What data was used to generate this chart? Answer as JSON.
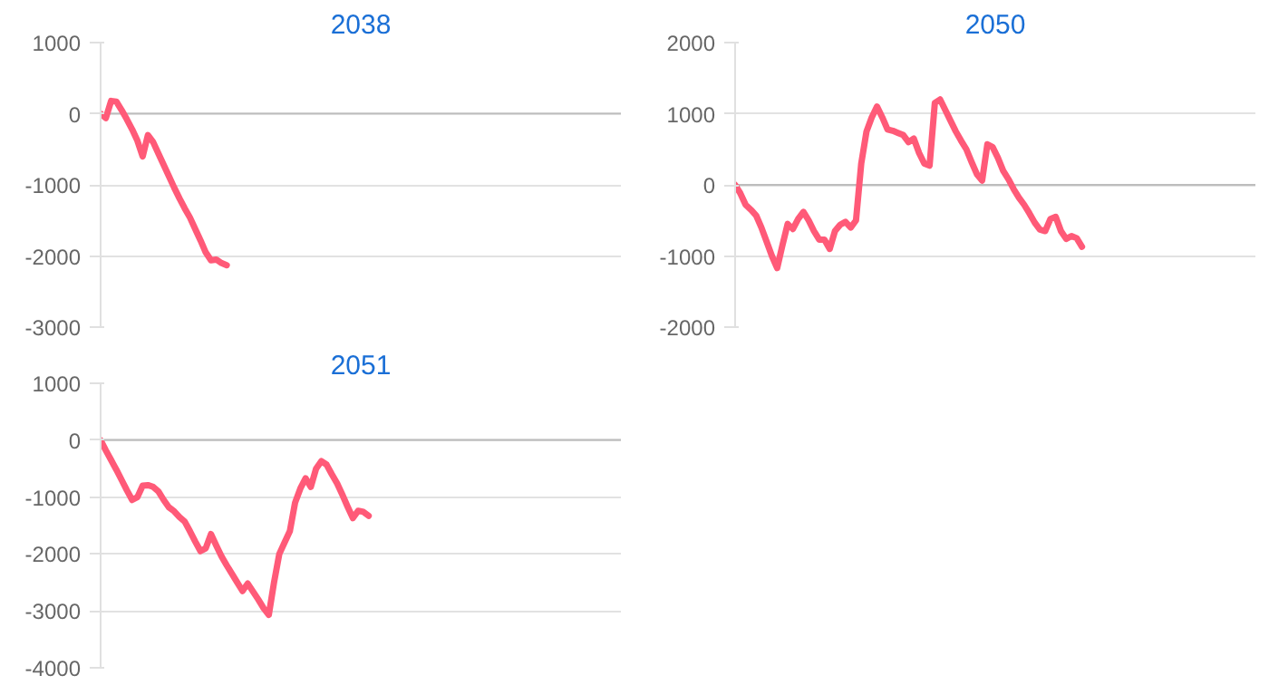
{
  "chart_data": [
    {
      "type": "line",
      "title": "2038",
      "categories": [
        null,
        null,
        null,
        null,
        null,
        null,
        null,
        null,
        null,
        null,
        null,
        null,
        null,
        null,
        null,
        null,
        null,
        null,
        null,
        null,
        null,
        null,
        null,
        null,
        null,
        null,
        null,
        null,
        null,
        null,
        null,
        null,
        null,
        null,
        null,
        null,
        null,
        null,
        null,
        null,
        null,
        null,
        null,
        null,
        null,
        null,
        null,
        null,
        null,
        null,
        null,
        null,
        null,
        null,
        null,
        null,
        null,
        null,
        null,
        null,
        null,
        null,
        null,
        null,
        null,
        null,
        null,
        null,
        null,
        null,
        null,
        null,
        null,
        null,
        null,
        null,
        null,
        null,
        null,
        null,
        null,
        null,
        null,
        null,
        null,
        null,
        null,
        null,
        null,
        null,
        null,
        null,
        null,
        null,
        null,
        null,
        null,
        null,
        null,
        null
      ],
      "series": [
        {
          "color": "#ff5a78",
          "values": [
            0,
            -60,
            180,
            170,
            50,
            -80,
            -220,
            -380,
            -600,
            -300,
            -400,
            -560,
            -720,
            -880,
            -1040,
            -1190,
            -1330,
            -1460,
            -1620,
            -1780,
            -1950,
            -2060,
            -2050,
            -2100,
            -2130,
            null,
            null,
            null,
            null,
            null,
            null,
            null,
            null,
            null,
            null,
            null,
            null,
            null,
            null,
            null,
            null,
            null,
            null,
            null,
            null,
            null,
            null,
            null,
            null,
            null,
            null,
            null,
            null,
            null,
            null,
            null,
            null,
            null,
            null,
            null,
            null,
            null,
            null,
            null,
            null,
            null,
            null,
            null,
            null,
            null,
            null,
            null,
            null,
            null,
            null,
            null,
            null,
            null,
            null,
            null,
            null,
            null,
            null,
            null,
            null,
            null,
            null,
            null,
            null,
            null,
            null,
            null,
            null,
            null,
            null,
            null,
            null,
            null,
            null,
            null
          ]
        }
      ],
      "ylim": [
        -3000,
        1000
      ],
      "yticks": [
        -3000,
        -2000,
        -1000,
        0,
        1000
      ],
      "grid": "y",
      "tick_labels": "y"
    },
    {
      "type": "line",
      "title": "2050",
      "categories": [
        null,
        null,
        null,
        null,
        null,
        null,
        null,
        null,
        null,
        null,
        null,
        null,
        null,
        null,
        null,
        null,
        null,
        null,
        null,
        null,
        null,
        null,
        null,
        null,
        null,
        null,
        null,
        null,
        null,
        null,
        null,
        null,
        null,
        null,
        null,
        null,
        null,
        null,
        null,
        null,
        null,
        null,
        null,
        null,
        null,
        null,
        null,
        null,
        null,
        null,
        null,
        null,
        null,
        null,
        null,
        null,
        null,
        null,
        null,
        null,
        null,
        null,
        null,
        null,
        null,
        null,
        null,
        null,
        null,
        null,
        null,
        null,
        null,
        null,
        null,
        null,
        null,
        null,
        null,
        null,
        null,
        null,
        null,
        null,
        null,
        null,
        null,
        null,
        null,
        null,
        null,
        null,
        null,
        null,
        null,
        null,
        null,
        null,
        null,
        null
      ],
      "series": [
        {
          "color": "#ff5a78",
          "values": [
            0,
            -120,
            -280,
            -350,
            -430,
            -600,
            -800,
            -1000,
            -1170,
            -850,
            -550,
            -620,
            -480,
            -380,
            -500,
            -650,
            -770,
            -770,
            -900,
            -650,
            -560,
            -520,
            -600,
            -500,
            300,
            750,
            950,
            1100,
            950,
            780,
            760,
            730,
            700,
            600,
            650,
            450,
            300,
            270,
            1150,
            1200,
            1050,
            900,
            750,
            620,
            500,
            320,
            150,
            60,
            570,
            530,
            380,
            200,
            80,
            -60,
            -180,
            -280,
            -400,
            -530,
            -630,
            -650,
            -480,
            -450,
            -650,
            -760,
            -720,
            -750,
            -870,
            null,
            null,
            null,
            null,
            null,
            null,
            null,
            null,
            null,
            null,
            null,
            null,
            null,
            null,
            null,
            null,
            null,
            null,
            null,
            null,
            null,
            null,
            null,
            null,
            null,
            null,
            null,
            null,
            null,
            null,
            null,
            null,
            null
          ]
        }
      ],
      "ylim": [
        -2000,
        2000
      ],
      "yticks": [
        -2000,
        -1000,
        0,
        1000,
        2000
      ],
      "grid": "y",
      "tick_labels": "y"
    },
    {
      "type": "line",
      "title": "2051",
      "categories": [
        null,
        null,
        null,
        null,
        null,
        null,
        null,
        null,
        null,
        null,
        null,
        null,
        null,
        null,
        null,
        null,
        null,
        null,
        null,
        null,
        null,
        null,
        null,
        null,
        null,
        null,
        null,
        null,
        null,
        null,
        null,
        null,
        null,
        null,
        null,
        null,
        null,
        null,
        null,
        null,
        null,
        null,
        null,
        null,
        null,
        null,
        null,
        null,
        null,
        null,
        null,
        null,
        null,
        null,
        null,
        null,
        null,
        null,
        null,
        null,
        null,
        null,
        null,
        null,
        null,
        null,
        null,
        null,
        null,
        null,
        null,
        null,
        null,
        null,
        null,
        null,
        null,
        null,
        null,
        null,
        null,
        null,
        null,
        null,
        null,
        null,
        null,
        null,
        null,
        null,
        null,
        null,
        null,
        null,
        null,
        null,
        null,
        null,
        null,
        null
      ],
      "series": [
        {
          "color": "#ff5a78",
          "values": [
            0,
            -180,
            -350,
            -520,
            -700,
            -880,
            -1050,
            -1000,
            -800,
            -790,
            -820,
            -900,
            -1050,
            -1180,
            -1250,
            -1350,
            -1430,
            -1600,
            -1780,
            -1950,
            -1900,
            -1650,
            -1850,
            -2040,
            -2200,
            -2350,
            -2500,
            -2650,
            -2520,
            -2660,
            -2800,
            -2950,
            -3070,
            -2500,
            -2000,
            -1800,
            -1600,
            -1100,
            -850,
            -670,
            -820,
            -500,
            -370,
            -430,
            -600,
            -760,
            -960,
            -1170,
            -1370,
            -1240,
            -1260,
            -1330,
            null,
            null,
            null,
            null,
            null,
            null,
            null,
            null,
            null,
            null,
            null,
            null,
            null,
            null,
            null,
            null,
            null,
            null,
            null,
            null,
            null,
            null,
            null,
            null,
            null,
            null,
            null,
            null,
            null,
            null,
            null,
            null,
            null,
            null,
            null,
            null,
            null,
            null,
            null,
            null,
            null,
            null,
            null,
            null,
            null,
            null,
            null,
            null
          ]
        }
      ],
      "ylim": [
        -4000,
        1000
      ],
      "yticks": [
        -4000,
        -3000,
        -2000,
        -1000,
        0,
        1000
      ],
      "grid": "y",
      "tick_labels": "y"
    }
  ]
}
